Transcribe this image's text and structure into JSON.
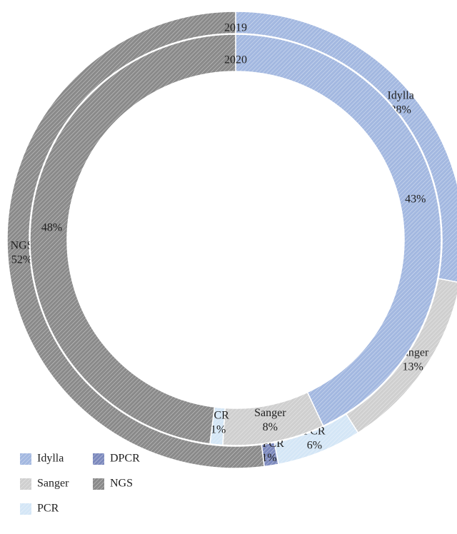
{
  "chart_data": {
    "type": "donut",
    "categories": [
      "Idylla",
      "Sanger",
      "PCR",
      "DPCR",
      "NGS"
    ],
    "colors": [
      "#a3b8e0",
      "#cfcfcf",
      "#d4e6f6",
      "#7c89bd",
      "#8a8a8a"
    ],
    "series": [
      {
        "name": "2019",
        "values": [
          28,
          13,
          6,
          1,
          52
        ],
        "value_labels": [
          "28%",
          "13%",
          "6%",
          "1%",
          "52%"
        ]
      },
      {
        "name": "2020",
        "values": [
          43,
          8,
          1,
          null,
          48
        ],
        "value_labels": [
          "43%",
          "8%",
          "1%",
          null,
          "48%"
        ]
      }
    ]
  }
}
